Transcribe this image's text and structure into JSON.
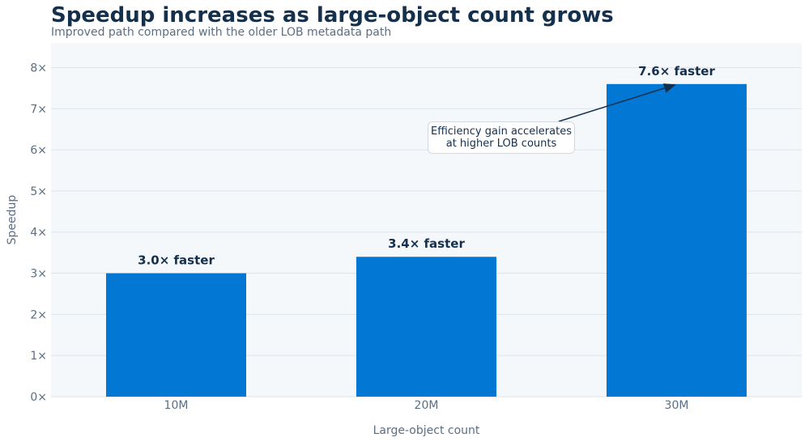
{
  "header": {
    "title": "Speedup increases as large-object count grows",
    "subtitle": "Improved path compared with the older LOB metadata path"
  },
  "chart_data": {
    "type": "bar",
    "categories": [
      "10M",
      "20M",
      "30M"
    ],
    "values": [
      3.0,
      3.4,
      7.6
    ],
    "data_labels": [
      "3.0× faster",
      "3.4× faster",
      "7.6× faster"
    ],
    "xlabel": "Large-object count",
    "ylabel": "Speedup",
    "ylim": [
      0,
      8.6
    ],
    "yticks": [
      0,
      1,
      2,
      3,
      4,
      5,
      6,
      7,
      8
    ],
    "ytick_labels": [
      "0×",
      "1×",
      "2×",
      "3×",
      "4×",
      "5×",
      "6×",
      "7×",
      "8×"
    ],
    "grid": true,
    "annotation": {
      "line1": "Efficiency gain accelerates",
      "line2": "at higher LOB counts",
      "target_category": "30M",
      "target_value": 7.6
    },
    "colors": {
      "bar": "#0277d3",
      "plot_background": "#f5f8fb",
      "grid": "#dde4ec",
      "text": "#14304d"
    }
  }
}
